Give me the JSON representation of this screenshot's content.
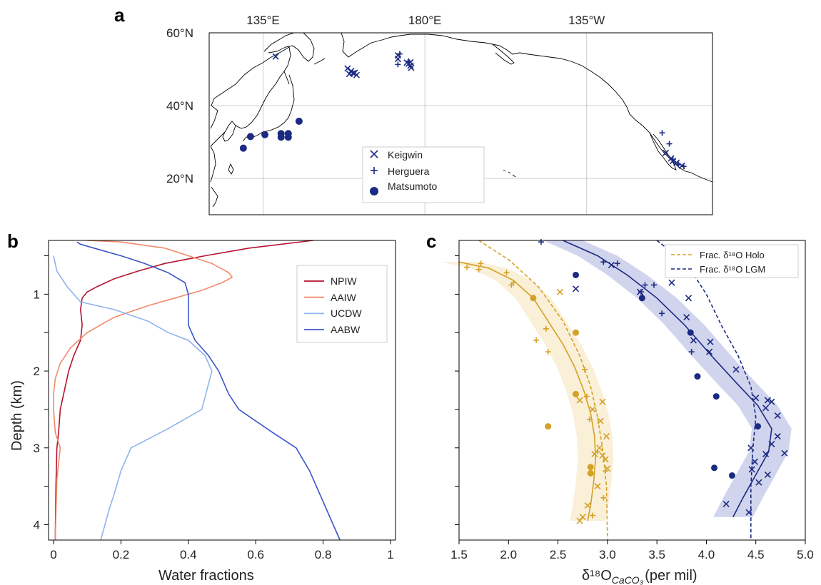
{
  "panels": {
    "a": "a",
    "b": "b",
    "c": "c"
  },
  "colors": {
    "navy": "#1b2a82",
    "gold": "#d4a128",
    "gold_band": "#f9ecd0",
    "navy_band": "#c9cdea",
    "npiw": "#b5132f",
    "aaiw": "#f08a6a",
    "ucdw": "#8db4ef",
    "aabw": "#3a55c8"
  },
  "chart_data": [
    {
      "panel": "a",
      "type": "scatter",
      "subtype": "map",
      "lon_ticks": [
        "135°E",
        "180°E",
        "135°W"
      ],
      "lat_ticks": [
        "60°N",
        "40°N",
        "20°N"
      ],
      "lon_range": [
        120,
        260
      ],
      "lat_range": [
        10,
        60
      ],
      "grid": true,
      "legend_position": "lower-center",
      "legend": [
        "Keigwin",
        "Herguera",
        "Matsumoto"
      ],
      "series": [
        {
          "name": "Keigwin",
          "marker": "x",
          "points": [
            [
              138.5,
              53.5
            ],
            [
              158.5,
              50.2
            ],
            [
              159.5,
              49.5
            ],
            [
              160.5,
              49.0
            ],
            [
              159.0,
              48.7
            ],
            [
              161.0,
              48.4
            ],
            [
              160.0,
              48.9
            ],
            [
              172.5,
              53.8
            ],
            [
              172.5,
              52.8
            ],
            [
              175.5,
              51.5
            ],
            [
              176.0,
              51.0
            ],
            [
              176.2,
              50.4
            ],
            [
              175.0,
              51.8
            ],
            [
              176.0,
              51.9
            ],
            [
              247.0,
              27.0
            ],
            [
              248.5,
              25.5
            ],
            [
              249.0,
              24.8
            ],
            [
              250.0,
              24.3
            ],
            [
              251.5,
              23.5
            ]
          ]
        },
        {
          "name": "Herguera",
          "marker": "+",
          "points": [
            [
              172.5,
              51.3
            ],
            [
              173.0,
              54.2
            ],
            [
              175.5,
              52.2
            ],
            [
              246.0,
              32.5
            ],
            [
              248.0,
              29.5
            ],
            [
              249.0,
              25.2
            ],
            [
              250.5,
              23.8
            ],
            [
              252.0,
              23.3
            ]
          ]
        },
        {
          "name": "Matsumoto",
          "marker": "o",
          "points": [
            [
              129.5,
              28.3
            ],
            [
              131.5,
              31.5
            ],
            [
              135.5,
              32.0
            ],
            [
              140.0,
              32.3
            ],
            [
              142.0,
              32.3
            ],
            [
              140.0,
              31.3
            ],
            [
              142.0,
              31.3
            ],
            [
              145.0,
              35.7
            ]
          ]
        }
      ]
    },
    {
      "panel": "b",
      "type": "line",
      "xlabel": "Water fractions",
      "ylabel": "Depth (km)",
      "xlim": [
        0,
        1
      ],
      "ylim": [
        4.2,
        0.3
      ],
      "x_ticks": [
        0,
        0.2,
        0.4,
        0.6,
        0.8,
        1
      ],
      "x_tick_labels": [
        "0",
        "0.2",
        "0.4",
        "0.6",
        "0.8",
        "1"
      ],
      "y_ticks": [
        1,
        2,
        3,
        4
      ],
      "y_tick_labels": [
        "1",
        "2",
        "3",
        "4"
      ],
      "legend_position": "top-right",
      "series": [
        {
          "name": "NPIW",
          "color": "#b5132f",
          "points": [
            [
              0.77,
              0.3
            ],
            [
              0.58,
              0.4
            ],
            [
              0.45,
              0.5
            ],
            [
              0.33,
              0.6
            ],
            [
              0.25,
              0.7
            ],
            [
              0.18,
              0.8
            ],
            [
              0.13,
              0.9
            ],
            [
              0.1,
              0.97
            ],
            [
              0.085,
              1.05
            ],
            [
              0.08,
              1.2
            ],
            [
              0.085,
              1.4
            ],
            [
              0.08,
              1.6
            ],
            [
              0.06,
              1.8
            ],
            [
              0.045,
              2.0
            ],
            [
              0.035,
              2.2
            ],
            [
              0.02,
              2.5
            ],
            [
              0.015,
              2.8
            ],
            [
              0.01,
              3.0
            ],
            [
              0.007,
              3.5
            ],
            [
              0.005,
              4.2
            ]
          ]
        },
        {
          "name": "AAIW",
          "color": "#f08a6a",
          "points": [
            [
              0.1,
              0.3
            ],
            [
              0.2,
              0.32
            ],
            [
              0.33,
              0.4
            ],
            [
              0.4,
              0.5
            ],
            [
              0.47,
              0.6
            ],
            [
              0.52,
              0.72
            ],
            [
              0.53,
              0.78
            ],
            [
              0.5,
              0.85
            ],
            [
              0.44,
              0.95
            ],
            [
              0.36,
              1.05
            ],
            [
              0.28,
              1.15
            ],
            [
              0.18,
              1.3
            ],
            [
              0.1,
              1.5
            ],
            [
              0.05,
              1.7
            ],
            [
              0.02,
              1.9
            ],
            [
              0.005,
              2.1
            ],
            [
              0,
              2.3
            ],
            [
              0,
              2.5
            ],
            [
              0.005,
              2.8
            ],
            [
              0.02,
              3.0
            ],
            [
              0.01,
              3.4
            ],
            [
              0.005,
              4.2
            ]
          ]
        },
        {
          "name": "UCDW",
          "color": "#8db4ef",
          "points": [
            [
              0.0,
              0.5
            ],
            [
              0.01,
              0.7
            ],
            [
              0.04,
              0.9
            ],
            [
              0.08,
              1.1
            ],
            [
              0.18,
              1.2
            ],
            [
              0.28,
              1.35
            ],
            [
              0.34,
              1.5
            ],
            [
              0.4,
              1.6
            ],
            [
              0.45,
              1.8
            ],
            [
              0.47,
              2.0
            ],
            [
              0.44,
              2.5
            ],
            [
              0.34,
              2.75
            ],
            [
              0.23,
              3.0
            ],
            [
              0.2,
              3.3
            ],
            [
              0.18,
              3.6
            ],
            [
              0.165,
              3.8
            ],
            [
              0.14,
              4.2
            ]
          ]
        },
        {
          "name": "AABW",
          "color": "#3a55c8",
          "points": [
            [
              0.07,
              0.32
            ],
            [
              0.08,
              0.35
            ],
            [
              0.12,
              0.4
            ],
            [
              0.2,
              0.5
            ],
            [
              0.27,
              0.6
            ],
            [
              0.34,
              0.72
            ],
            [
              0.39,
              0.85
            ],
            [
              0.4,
              1.0
            ],
            [
              0.4,
              1.2
            ],
            [
              0.4,
              1.4
            ],
            [
              0.42,
              1.6
            ],
            [
              0.46,
              1.8
            ],
            [
              0.49,
              2.0
            ],
            [
              0.52,
              2.3
            ],
            [
              0.55,
              2.5
            ],
            [
              0.65,
              2.8
            ],
            [
              0.72,
              3.0
            ],
            [
              0.76,
              3.3
            ],
            [
              0.8,
              3.7
            ],
            [
              0.85,
              4.2
            ]
          ]
        }
      ]
    },
    {
      "panel": "c",
      "type": "scatter",
      "xlabel": "δ¹⁸O",
      "xlabel_sub": "CaCO₃",
      "xlabel_suffix": "(per mil)",
      "xlim": [
        1.5,
        5.0
      ],
      "ylim": [
        4.2,
        0.3
      ],
      "x_ticks": [
        1.5,
        2.0,
        2.5,
        3.0,
        3.5,
        4.0,
        4.5,
        5.0
      ],
      "x_tick_labels": [
        "1.5",
        "2.0",
        "2.5",
        "3.0",
        "3.5",
        "4.0",
        "4.5",
        "5.0"
      ],
      "y_ticks": [
        1,
        2,
        3,
        4
      ],
      "legend_position": "top-right",
      "legend": [
        "Frac. δ¹⁸O Holo",
        "Frac. δ¹⁸O LGM"
      ],
      "holocene": {
        "x_points": [
          [
            2.52,
            0.97
          ],
          [
            2.72,
            2.38
          ],
          [
            2.95,
            2.4
          ],
          [
            2.85,
            2.5
          ],
          [
            2.93,
            2.65
          ],
          [
            2.99,
            2.85
          ],
          [
            2.92,
            3.0
          ],
          [
            2.95,
            3.1
          ],
          [
            2.98,
            3.15
          ],
          [
            3.0,
            3.27
          ],
          [
            2.9,
            3.5
          ],
          [
            2.8,
            3.75
          ],
          [
            2.75,
            3.9
          ],
          [
            2.72,
            3.95
          ],
          [
            2.87,
            3.08
          ]
        ],
        "plus_points": [
          [
            1.72,
            0.6
          ],
          [
            1.58,
            0.65
          ],
          [
            1.7,
            0.68
          ],
          [
            1.98,
            0.72
          ],
          [
            2.05,
            0.85
          ],
          [
            2.03,
            0.88
          ],
          [
            2.38,
            1.45
          ],
          [
            2.28,
            1.6
          ],
          [
            2.4,
            1.75
          ],
          [
            2.77,
            1.98
          ],
          [
            2.79,
            2.33
          ],
          [
            2.9,
            3.05
          ],
          [
            2.98,
            3.3
          ],
          [
            2.96,
            3.65
          ],
          [
            2.85,
            3.88
          ],
          [
            2.82,
            2.63
          ]
        ],
        "dots": [
          [
            2.25,
            1.05
          ],
          [
            2.68,
            1.5
          ],
          [
            2.68,
            2.3
          ],
          [
            2.4,
            2.72
          ],
          [
            2.83,
            3.25
          ],
          [
            2.83,
            3.33
          ]
        ],
        "smooth": [
          [
            1.5,
            0.58
          ],
          [
            1.8,
            0.66
          ],
          [
            2.05,
            0.82
          ],
          [
            2.25,
            1.05
          ],
          [
            2.4,
            1.35
          ],
          [
            2.55,
            1.65
          ],
          [
            2.67,
            1.95
          ],
          [
            2.76,
            2.25
          ],
          [
            2.83,
            2.55
          ],
          [
            2.87,
            2.85
          ],
          [
            2.88,
            3.15
          ],
          [
            2.86,
            3.45
          ],
          [
            2.83,
            3.75
          ],
          [
            2.8,
            3.95
          ]
        ],
        "band_half_width": 0.18,
        "frac_line": [
          [
            1.7,
            0.3
          ],
          [
            2.0,
            0.55
          ],
          [
            2.3,
            0.9
          ],
          [
            2.55,
            1.35
          ],
          [
            2.72,
            1.8
          ],
          [
            2.83,
            2.2
          ],
          [
            2.9,
            2.6
          ],
          [
            2.95,
            3.0
          ],
          [
            2.99,
            3.5
          ],
          [
            3.0,
            4.2
          ]
        ]
      },
      "lgm": {
        "x_points": [
          [
            2.68,
            0.93
          ],
          [
            3.65,
            0.85
          ],
          [
            3.82,
            1.05
          ],
          [
            3.8,
            1.3
          ],
          [
            3.87,
            1.6
          ],
          [
            4.04,
            1.62
          ],
          [
            4.03,
            1.75
          ],
          [
            4.3,
            1.98
          ],
          [
            4.5,
            2.35
          ],
          [
            4.62,
            2.38
          ],
          [
            4.66,
            2.4
          ],
          [
            4.6,
            2.48
          ],
          [
            4.72,
            2.58
          ],
          [
            4.72,
            2.85
          ],
          [
            4.66,
            2.95
          ],
          [
            4.49,
            3.18
          ],
          [
            4.6,
            3.08
          ],
          [
            4.79,
            3.07
          ],
          [
            4.46,
            3.28
          ],
          [
            4.62,
            3.35
          ],
          [
            4.53,
            3.45
          ],
          [
            4.45,
            3.0
          ],
          [
            4.2,
            3.73
          ],
          [
            4.43,
            3.84
          ],
          [
            3.33,
            0.97
          ],
          [
            3.04,
            0.62
          ]
        ],
        "plus_points": [
          [
            2.33,
            0.32
          ],
          [
            2.96,
            0.58
          ],
          [
            3.1,
            0.6
          ],
          [
            3.38,
            0.88
          ],
          [
            3.47,
            0.88
          ],
          [
            3.34,
            0.97
          ],
          [
            3.55,
            1.25
          ],
          [
            3.85,
            1.75
          ]
        ],
        "dots": [
          [
            2.68,
            0.75
          ],
          [
            3.35,
            1.05
          ],
          [
            3.84,
            1.5
          ],
          [
            3.91,
            2.07
          ],
          [
            4.1,
            2.33
          ],
          [
            4.52,
            2.72
          ],
          [
            4.08,
            3.26
          ],
          [
            4.26,
            3.36
          ]
        ],
        "smooth": [
          [
            2.55,
            0.3
          ],
          [
            2.9,
            0.5
          ],
          [
            3.2,
            0.75
          ],
          [
            3.5,
            1.05
          ],
          [
            3.78,
            1.4
          ],
          [
            4.05,
            1.8
          ],
          [
            4.3,
            2.15
          ],
          [
            4.52,
            2.45
          ],
          [
            4.66,
            2.75
          ],
          [
            4.63,
            3.05
          ],
          [
            4.5,
            3.35
          ],
          [
            4.37,
            3.65
          ],
          [
            4.27,
            3.9
          ]
        ],
        "band_half_width": 0.2,
        "frac_line": [
          [
            3.5,
            0.3
          ],
          [
            3.8,
            0.6
          ],
          [
            4.0,
            1.0
          ],
          [
            4.15,
            1.4
          ],
          [
            4.32,
            1.8
          ],
          [
            4.45,
            2.2
          ],
          [
            4.5,
            2.6
          ],
          [
            4.47,
            3.0
          ],
          [
            4.45,
            3.5
          ],
          [
            4.45,
            4.2
          ]
        ]
      }
    }
  ],
  "legend_b": [
    "NPIW",
    "AAIW",
    "UCDW",
    "AABW"
  ],
  "legend_c": [
    "Frac. δ¹⁸O Holo",
    "Frac. δ¹⁸O LGM"
  ],
  "legend_a": [
    "Keigwin",
    "Herguera",
    "Matsumoto"
  ]
}
